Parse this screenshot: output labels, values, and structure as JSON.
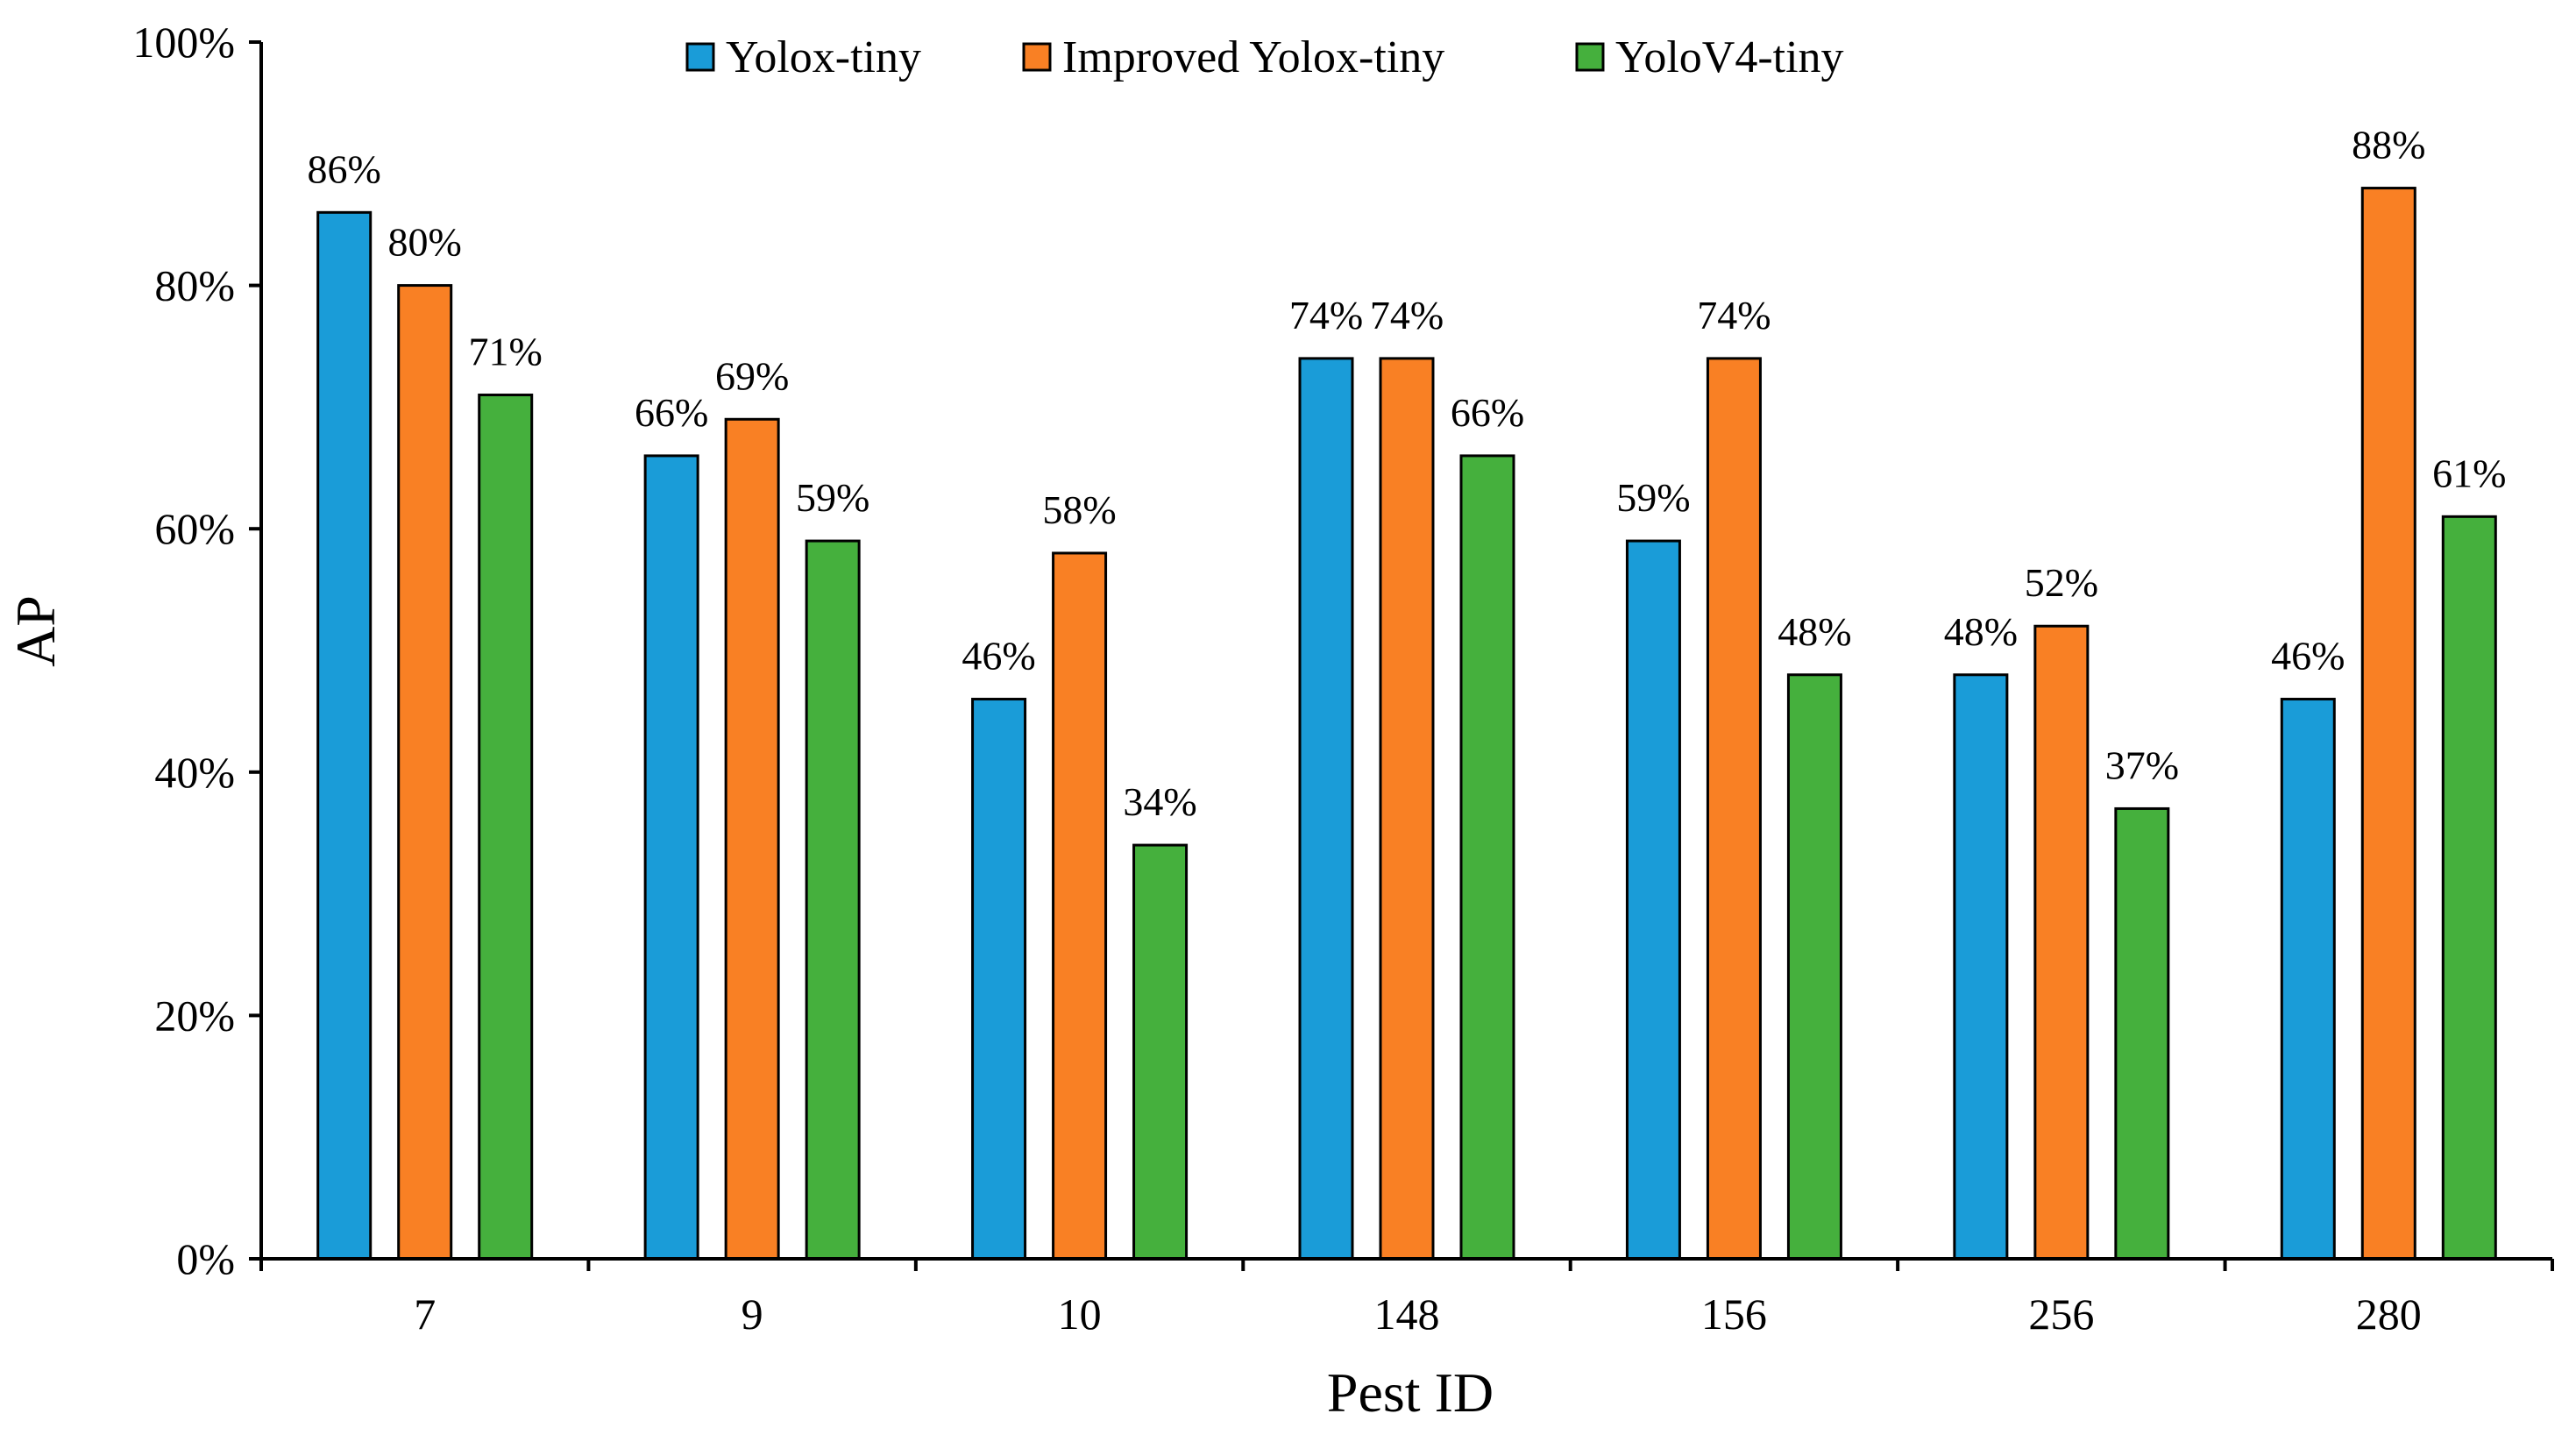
{
  "chart_data": {
    "type": "bar",
    "categories": [
      "7",
      "9",
      "10",
      "148",
      "156",
      "256",
      "280"
    ],
    "series": [
      {
        "name": "Yolox-tiny",
        "color": "#1a9cd8",
        "values": [
          86,
          66,
          46,
          74,
          59,
          48,
          46
        ]
      },
      {
        "name": "Improved Yolox-tiny",
        "color": "#f98024",
        "values": [
          80,
          69,
          58,
          74,
          74,
          52,
          88
        ]
      },
      {
        "name": "YoloV4-tiny",
        "color": "#45b03d",
        "values": [
          71,
          59,
          34,
          66,
          48,
          37,
          61
        ]
      }
    ],
    "xlabel": "Pest ID",
    "ylabel": "AP",
    "ylim": [
      0,
      100
    ],
    "yticks": [
      0,
      20,
      40,
      60,
      80,
      100
    ],
    "value_format": "percent",
    "grid": false,
    "legend_position": "top"
  }
}
